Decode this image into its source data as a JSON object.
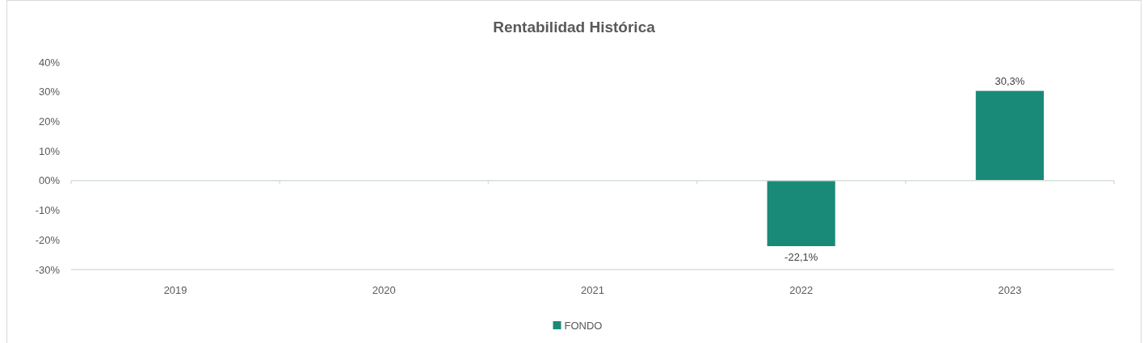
{
  "chart_data": {
    "type": "bar",
    "title": "Rentabilidad Histórica",
    "categories": [
      "2019",
      "2020",
      "2021",
      "2022",
      "2023"
    ],
    "series": [
      {
        "name": "FONDO",
        "color": "#1a8a78",
        "values": [
          null,
          null,
          null,
          -22.1,
          30.3
        ],
        "value_labels": [
          null,
          null,
          null,
          "-22,1%",
          "30,3%"
        ]
      }
    ],
    "ylim": [
      -30,
      40
    ],
    "yticks": [
      {
        "value": 40,
        "label": "40%"
      },
      {
        "value": 30,
        "label": "30%"
      },
      {
        "value": 20,
        "label": "20%"
      },
      {
        "value": 10,
        "label": "10%"
      },
      {
        "value": 0,
        "label": "00%"
      },
      {
        "value": -10,
        "label": "-10%"
      },
      {
        "value": -20,
        "label": "-20%"
      },
      {
        "value": -30,
        "label": "-30%"
      }
    ],
    "legend": "bottom"
  }
}
